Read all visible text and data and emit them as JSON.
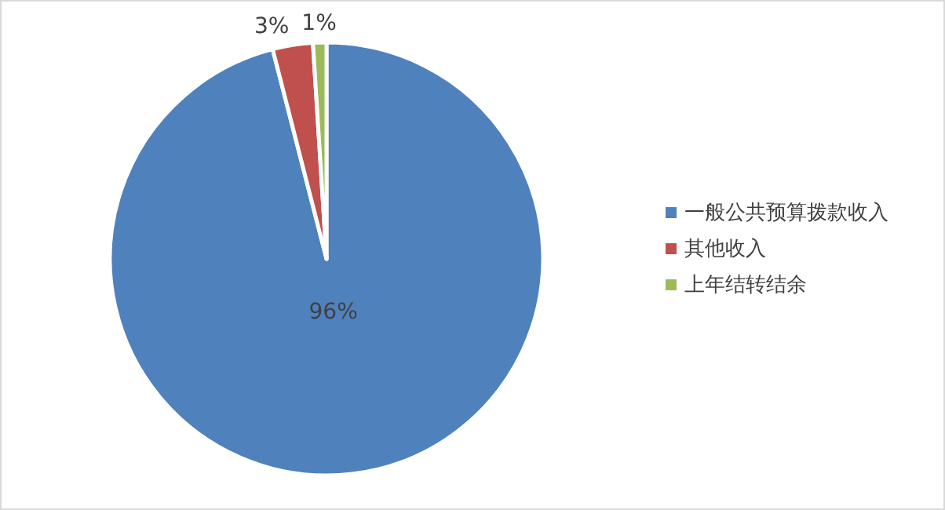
{
  "chart_data": {
    "type": "pie",
    "categories": [
      "一般公共预算拨款收入",
      "其他收入",
      "上年结转结余"
    ],
    "values": [
      96,
      3,
      1
    ],
    "colors": [
      "#4f81bd",
      "#c0504d",
      "#9bbb59"
    ],
    "value_labels": [
      "96%",
      "3%",
      "1%"
    ],
    "legend": "right"
  }
}
